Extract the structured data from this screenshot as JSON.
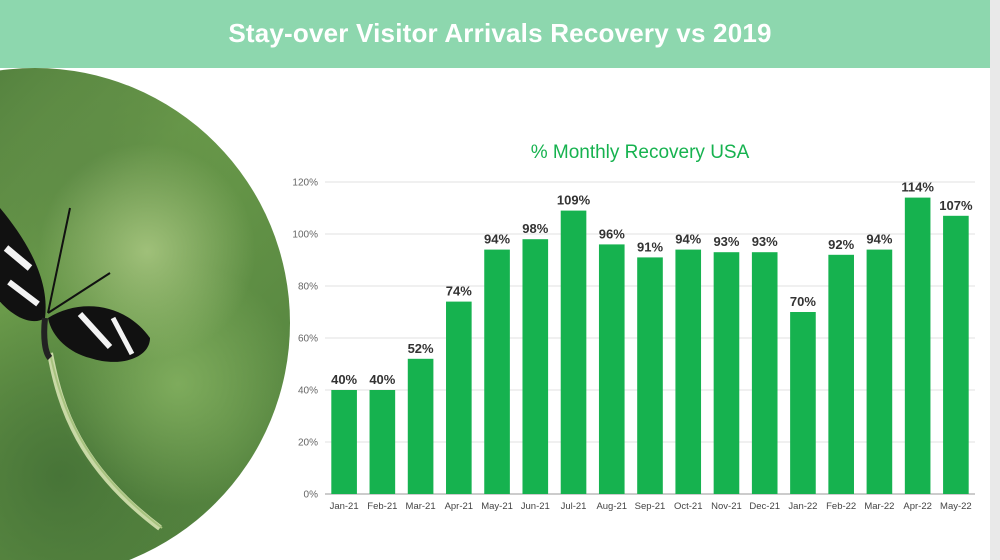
{
  "header": {
    "title": "Stay-over Visitor Arrivals Recovery vs 2019"
  },
  "photo": {
    "icon": "butterfly-photo"
  },
  "colors": {
    "header_bg": "#8dd7ae",
    "bar": "#16b24f",
    "title": "#16b24f"
  },
  "chart_data": {
    "type": "bar",
    "title": "% Monthly Recovery USA",
    "xlabel": "",
    "ylabel": "",
    "ylim": [
      0,
      120
    ],
    "yticks": [
      "0%",
      "20%",
      "40%",
      "60%",
      "80%",
      "100%",
      "120%"
    ],
    "grid": true,
    "categories": [
      "Jan-21",
      "Feb-21",
      "Mar-21",
      "Apr-21",
      "May-21",
      "Jun-21",
      "Jul-21",
      "Aug-21",
      "Sep-21",
      "Oct-21",
      "Nov-21",
      "Dec-21",
      "Jan-22",
      "Feb-22",
      "Mar-22",
      "Apr-22",
      "May-22"
    ],
    "values": [
      40,
      40,
      52,
      74,
      94,
      98,
      109,
      96,
      91,
      94,
      93,
      93,
      70,
      92,
      94,
      114,
      107
    ],
    "labels": [
      "40%",
      "40%",
      "52%",
      "74%",
      "94%",
      "98%",
      "109%",
      "96%",
      "91%",
      "94%",
      "93%",
      "93%",
      "70%",
      "92%",
      "94%",
      "114%",
      "107%"
    ]
  }
}
